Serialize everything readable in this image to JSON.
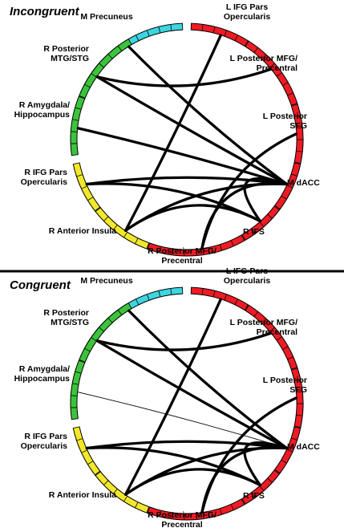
{
  "colors": {
    "medial": "#3dd5e0",
    "left": "#ee1b24",
    "right_temporal": "#3bc43b",
    "right_frontal": "#f2e82a",
    "divider": "#000000",
    "connection": "#000000"
  },
  "regions": [
    {
      "id": "mprec",
      "label": "M Precuneus",
      "color": "medial"
    },
    {
      "id": "lifgpo",
      "label": "L IFG Pars\nOpercularis",
      "color": "left"
    },
    {
      "id": "lpmfg",
      "label": "L Posterior MFG/\nPrecentral",
      "color": "left"
    },
    {
      "id": "lpsfg",
      "label": "L Posterior\nSFG",
      "color": "left"
    },
    {
      "id": "mdacc",
      "label": "M dACC",
      "color": "left"
    },
    {
      "id": "rifs",
      "label": "R IFS",
      "color": "left"
    },
    {
      "id": "rpmfg",
      "label": "R Posterior MFG/\nPrecentral",
      "color": "left"
    },
    {
      "id": "rains",
      "label": "R Anterior Insula",
      "color": "right_frontal"
    },
    {
      "id": "rifgpo",
      "label": "R IFG Pars\nOpercularis",
      "color": "right_frontal"
    },
    {
      "id": "ramyg",
      "label": "R Amygdala/\nHippocampus",
      "color": "right_temporal"
    },
    {
      "id": "rpmtg",
      "label": "R Posterior\nMTG/STG",
      "color": "right_temporal"
    }
  ],
  "panels": [
    {
      "id": "incongruent",
      "title": "Incongruent",
      "connections": [
        {
          "from": "mprec",
          "to": "mdacc",
          "weight": "thick"
        },
        {
          "from": "lifgpo",
          "to": "rains",
          "weight": "thick"
        },
        {
          "from": "lpmfg",
          "to": "rpmtg",
          "weight": "thick"
        },
        {
          "from": "lpsfg",
          "to": "rpmfg",
          "weight": "thick"
        },
        {
          "from": "ramyg",
          "to": "mdacc",
          "weight": "thick"
        },
        {
          "from": "rpmtg",
          "to": "mdacc",
          "weight": "thick"
        },
        {
          "from": "rifgpo",
          "to": "mdacc",
          "weight": "thick"
        },
        {
          "from": "rains",
          "to": "mdacc",
          "weight": "thick"
        },
        {
          "from": "rifs",
          "to": "mdacc",
          "weight": "thick"
        },
        {
          "from": "rpmfg",
          "to": "mdacc",
          "weight": "thick"
        },
        {
          "from": "rifgpo",
          "to": "rifs",
          "weight": "thick"
        },
        {
          "from": "rains",
          "to": "rifs",
          "weight": "thick"
        }
      ]
    },
    {
      "id": "congruent",
      "title": "Congruent",
      "connections": [
        {
          "from": "mprec",
          "to": "mdacc",
          "weight": "thick"
        },
        {
          "from": "lifgpo",
          "to": "rains",
          "weight": "thick"
        },
        {
          "from": "lpmfg",
          "to": "rpmtg",
          "weight": "thick"
        },
        {
          "from": "lpsfg",
          "to": "rpmfg",
          "weight": "thick"
        },
        {
          "from": "ramyg",
          "to": "mdacc",
          "weight": "thin"
        },
        {
          "from": "rpmtg",
          "to": "mdacc",
          "weight": "thick"
        },
        {
          "from": "rifgpo",
          "to": "mdacc",
          "weight": "thick"
        },
        {
          "from": "rains",
          "to": "mdacc",
          "weight": "thick"
        },
        {
          "from": "rifs",
          "to": "mdacc",
          "weight": "thick"
        },
        {
          "from": "rpmfg",
          "to": "mdacc",
          "weight": "thick"
        },
        {
          "from": "rifgpo",
          "to": "rifs",
          "weight": "thick"
        },
        {
          "from": "rains",
          "to": "rifs",
          "weight": "thick"
        }
      ]
    }
  ]
}
